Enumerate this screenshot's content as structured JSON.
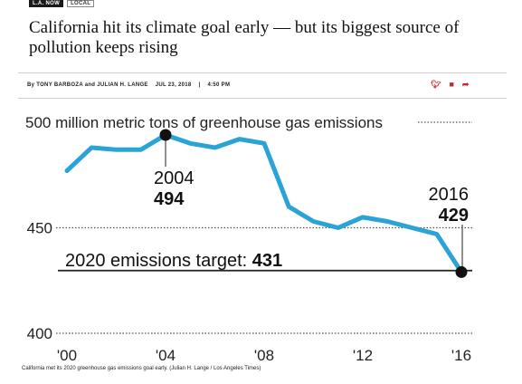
{
  "header": {
    "tags": [
      "L.A. NOW",
      "LOCAL"
    ],
    "headline": "California hit its climate goal early — but its biggest source of pollution keeps rising",
    "byline": {
      "authors": "By TONY BARBOZA and JULIAN H. LANGE",
      "date": "JUL 23, 2018",
      "separator": "|",
      "time": "4:50 PM"
    },
    "share_icons": [
      "twitter-icon",
      "facebook-icon",
      "share-icon"
    ],
    "accent_color": "#c8272c"
  },
  "chart_data": {
    "type": "line",
    "title": "500 million metric tons of greenhouse gas emissions",
    "x": [
      2000,
      2001,
      2002,
      2003,
      2004,
      2005,
      2006,
      2007,
      2008,
      2009,
      2010,
      2011,
      2012,
      2013,
      2014,
      2015,
      2016
    ],
    "series": [
      {
        "values": [
          477,
          488,
          487,
          487,
          494,
          490,
          488,
          492,
          490,
          460,
          453,
          450,
          455,
          453,
          450,
          447,
          429
        ],
        "color": "#2aa3d6"
      }
    ],
    "ylim": [
      400,
      500
    ],
    "xlim": [
      2000,
      2016
    ],
    "xticks": [
      "'00",
      "'04",
      "'08",
      "'12",
      "'16"
    ],
    "xtick_values": [
      2000,
      2004,
      2008,
      2012,
      2016
    ],
    "yticks": [
      "400",
      "450",
      "500"
    ],
    "ytick_values": [
      400,
      450,
      500
    ],
    "grid": "dotted horizontal at y ticks",
    "target": {
      "label": "2020 emissions target:",
      "value": "431",
      "y": 431
    },
    "annotations": [
      {
        "year": "2004",
        "value": "494",
        "x": 2004,
        "y": 494
      },
      {
        "year": "2016",
        "value": "429",
        "x": 2016,
        "y": 429
      }
    ]
  },
  "caption": "California met its 2020 greenhouse gas emissions goal early. (Julian H. Lange / Los Angeles Times)"
}
